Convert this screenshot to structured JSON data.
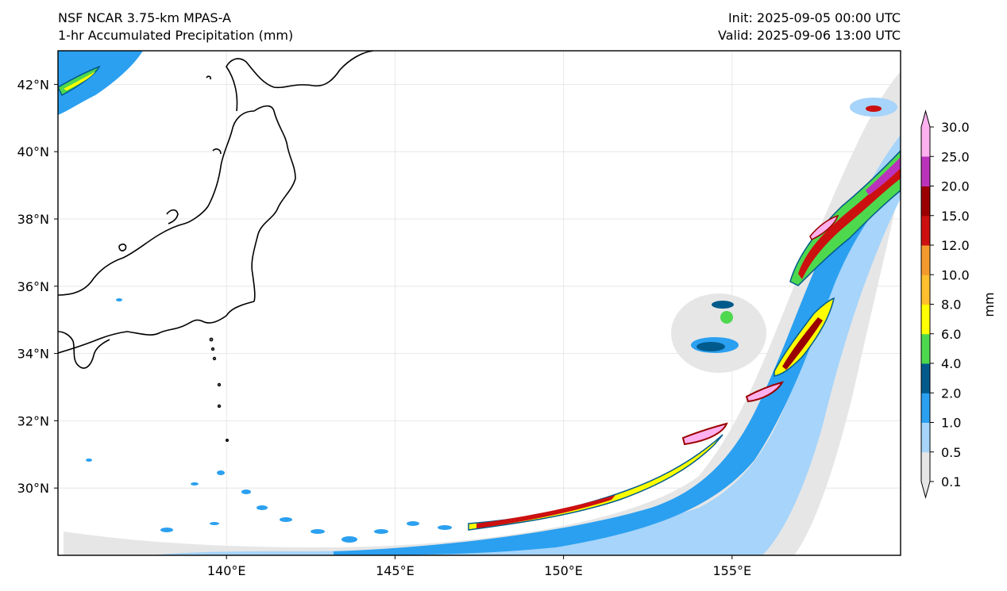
{
  "header": {
    "model": "NSF NCAR 3.75-km MPAS-A",
    "field": "1-hr Accumulated Precipitation (mm)",
    "init": "Init: 2025-09-05 00:00 UTC",
    "valid": "Valid: 2025-09-06 13:00 UTC"
  },
  "map": {
    "lon_range": [
      135,
      160
    ],
    "lat_range": [
      28,
      43
    ],
    "lon_ticks": [
      {
        "value": 140,
        "label": "140°E"
      },
      {
        "value": 145,
        "label": "145°E"
      },
      {
        "value": 150,
        "label": "150°E"
      },
      {
        "value": 155,
        "label": "155°E"
      }
    ],
    "lat_ticks": [
      {
        "value": 30,
        "label": "30°N"
      },
      {
        "value": 32,
        "label": "32°N"
      },
      {
        "value": 34,
        "label": "34°N"
      },
      {
        "value": 36,
        "label": "36°N"
      },
      {
        "value": 38,
        "label": "38°N"
      },
      {
        "value": 40,
        "label": "40°N"
      },
      {
        "value": 42,
        "label": "42°N"
      }
    ],
    "gridlines": true
  },
  "colorbar": {
    "unit": "mm",
    "levels": [
      "0.1",
      "0.5",
      "1.0",
      "2.0",
      "4.0",
      "6.0",
      "8.0",
      "10.0",
      "12.0",
      "15.0",
      "20.0",
      "25.0",
      "30.0"
    ],
    "colors": [
      "#e6e6e6",
      "#a6d4fa",
      "#2ba0f0",
      "#005a8c",
      "#4ed84e",
      "#ffff00",
      "#ffbf2e",
      "#f39a2e",
      "#cc1010",
      "#9a0000",
      "#bb33bb",
      "#ffb0ee"
    ]
  }
}
